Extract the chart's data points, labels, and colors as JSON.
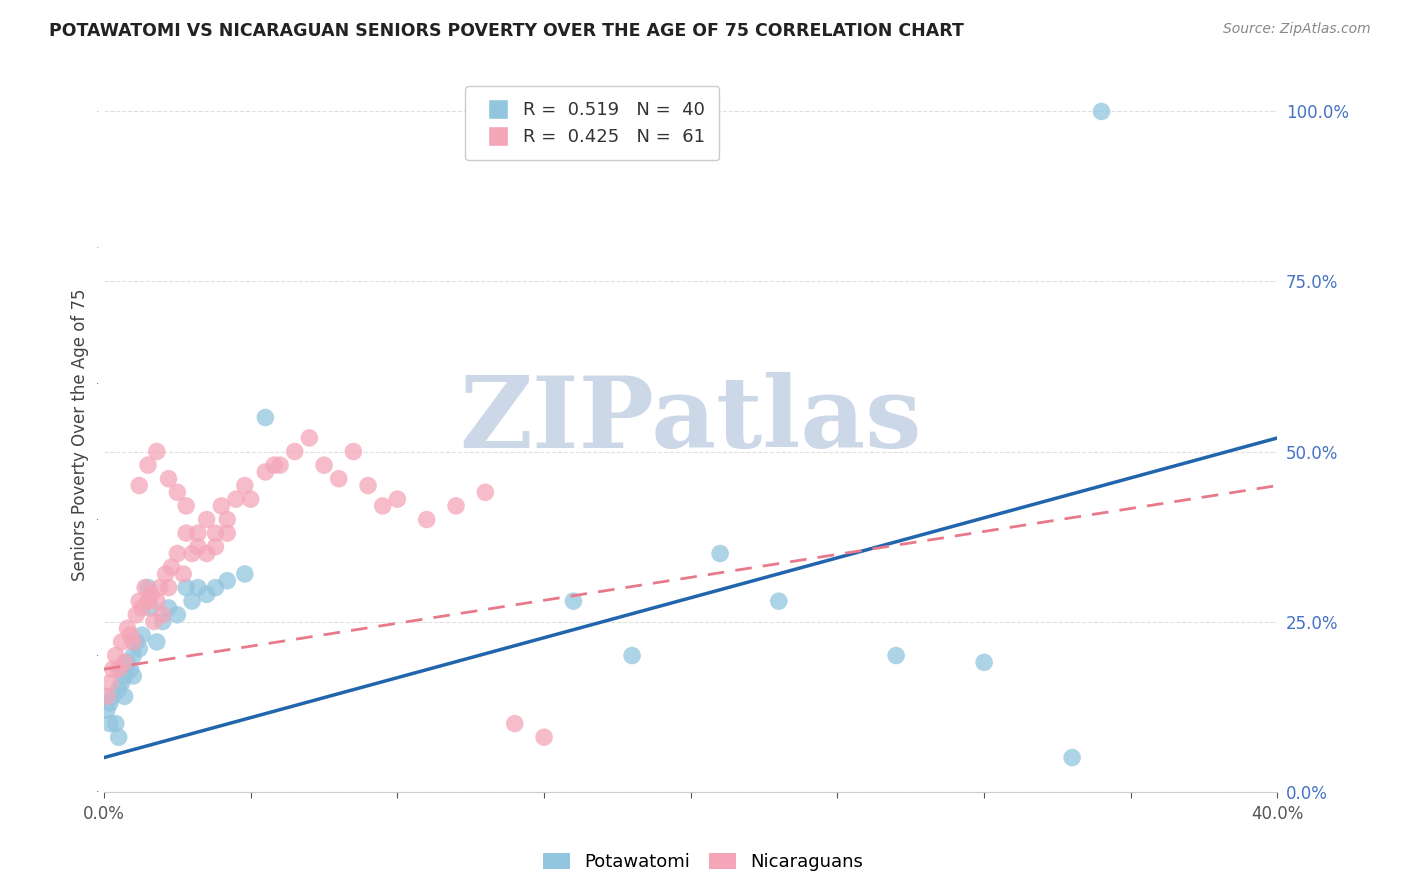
{
  "title": "POTAWATOMI VS NICARAGUAN SENIORS POVERTY OVER THE AGE OF 75 CORRELATION CHART",
  "source": "Source: ZipAtlas.com",
  "ylabel": "Seniors Poverty Over the Age of 75",
  "xlim": [
    0.0,
    0.4
  ],
  "ylim": [
    0.0,
    1.05
  ],
  "xticks": [
    0.0,
    0.05,
    0.1,
    0.15,
    0.2,
    0.25,
    0.3,
    0.35,
    0.4
  ],
  "xtick_labels": [
    "0.0%",
    "",
    "",
    "",
    "",
    "",
    "",
    "",
    "40.0%"
  ],
  "yticks_right": [
    0.0,
    0.25,
    0.5,
    0.75,
    1.0
  ],
  "ytick_labels_right": [
    "0.0%",
    "25.0%",
    "50.0%",
    "75.0%",
    "100.0%"
  ],
  "potawatomi_color": "#92c5de",
  "nicaraguan_color": "#f4a6b8",
  "potawatomi_R": 0.519,
  "potawatomi_N": 40,
  "nicaraguan_R": 0.425,
  "nicaraguan_N": 61,
  "potawatomi_line_color": "#2166ac",
  "nicaraguan_line_color": "#e8798a",
  "watermark": "ZIPatlas",
  "watermark_color": "#ccd8e8",
  "background_color": "#ffffff",
  "grid_color": "#e0e0e0",
  "potawatomi_x": [
    0.001,
    0.002,
    0.002,
    0.003,
    0.004,
    0.005,
    0.005,
    0.006,
    0.006,
    0.007,
    0.007,
    0.008,
    0.009,
    0.01,
    0.01,
    0.011,
    0.012,
    0.013,
    0.015,
    0.016,
    0.018,
    0.02,
    0.022,
    0.025,
    0.028,
    0.03,
    0.032,
    0.035,
    0.038,
    0.042,
    0.048,
    0.055,
    0.16,
    0.18,
    0.21,
    0.23,
    0.27,
    0.3,
    0.33,
    0.34
  ],
  "potawatomi_y": [
    0.12,
    0.1,
    0.13,
    0.14,
    0.1,
    0.15,
    0.08,
    0.16,
    0.18,
    0.14,
    0.17,
    0.19,
    0.18,
    0.2,
    0.17,
    0.22,
    0.21,
    0.23,
    0.3,
    0.27,
    0.22,
    0.25,
    0.27,
    0.26,
    0.3,
    0.28,
    0.3,
    0.29,
    0.3,
    0.31,
    0.32,
    0.55,
    0.28,
    0.2,
    0.35,
    0.28,
    0.2,
    0.19,
    0.05,
    1.0
  ],
  "nicaraguan_x": [
    0.001,
    0.002,
    0.003,
    0.004,
    0.005,
    0.006,
    0.007,
    0.008,
    0.009,
    0.01,
    0.011,
    0.012,
    0.013,
    0.014,
    0.015,
    0.016,
    0.017,
    0.018,
    0.019,
    0.02,
    0.021,
    0.022,
    0.023,
    0.025,
    0.027,
    0.028,
    0.03,
    0.032,
    0.035,
    0.038,
    0.04,
    0.042,
    0.045,
    0.048,
    0.05,
    0.055,
    0.058,
    0.06,
    0.065,
    0.07,
    0.075,
    0.08,
    0.085,
    0.09,
    0.095,
    0.1,
    0.11,
    0.12,
    0.13,
    0.14,
    0.15,
    0.012,
    0.015,
    0.018,
    0.022,
    0.025,
    0.028,
    0.032,
    0.035,
    0.038,
    0.042
  ],
  "nicaraguan_y": [
    0.14,
    0.16,
    0.18,
    0.2,
    0.18,
    0.22,
    0.19,
    0.24,
    0.23,
    0.22,
    0.26,
    0.28,
    0.27,
    0.3,
    0.28,
    0.29,
    0.25,
    0.28,
    0.3,
    0.26,
    0.32,
    0.3,
    0.33,
    0.35,
    0.32,
    0.38,
    0.35,
    0.36,
    0.4,
    0.38,
    0.42,
    0.4,
    0.43,
    0.45,
    0.43,
    0.47,
    0.48,
    0.48,
    0.5,
    0.52,
    0.48,
    0.46,
    0.5,
    0.45,
    0.42,
    0.43,
    0.4,
    0.42,
    0.44,
    0.1,
    0.08,
    0.45,
    0.48,
    0.5,
    0.46,
    0.44,
    0.42,
    0.38,
    0.35,
    0.36,
    0.38
  ]
}
